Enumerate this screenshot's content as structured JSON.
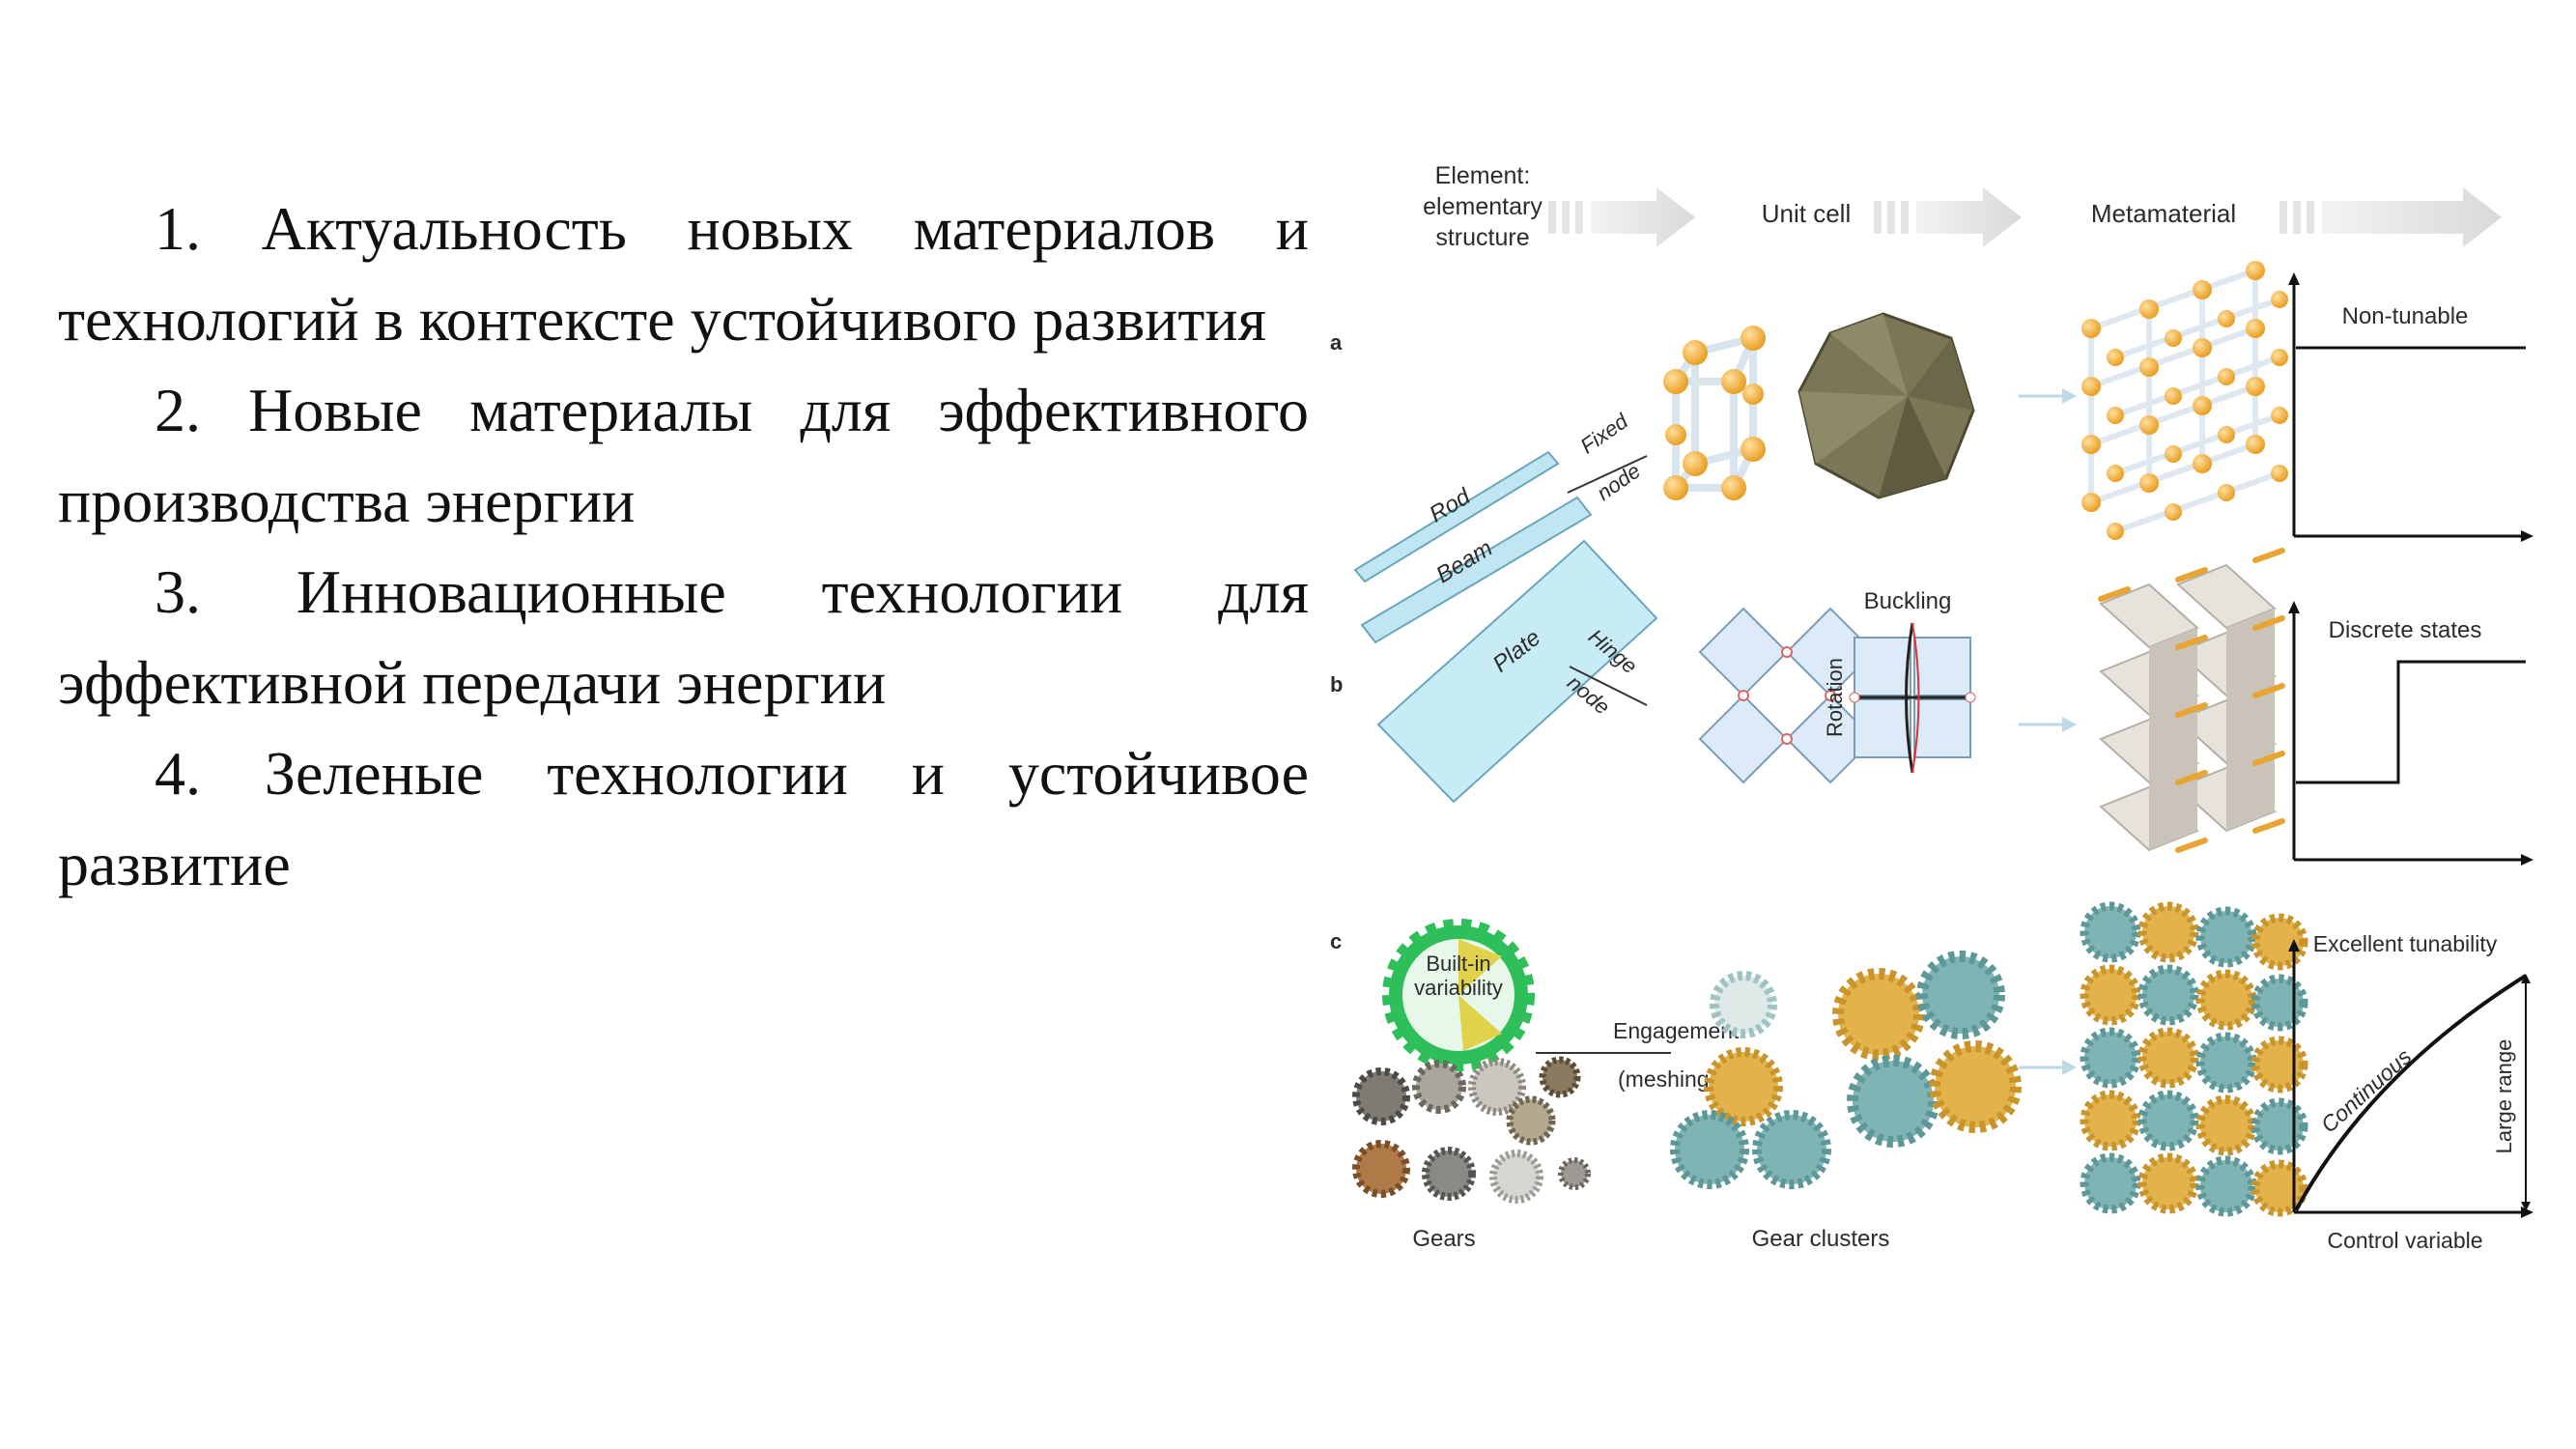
{
  "list_items": [
    {
      "number": "1.",
      "text": "Актуальность новых материалов и технологий в контексте устойчивого развития"
    },
    {
      "number": "2.",
      "text": "Новые материалы для эффективного производства энергии"
    },
    {
      "number": "3.",
      "text": "Инновационные технологии для эффективной передачи энергии"
    },
    {
      "number": "4.",
      "text": "Зеленые технологии и устойчивое развитие"
    }
  ],
  "figure": {
    "header": {
      "element_line1": "Element:",
      "element_line2": "elementary",
      "element_line3": "structure",
      "unit_cell": "Unit cell",
      "metamaterial": "Metamaterial"
    },
    "panel_letters": {
      "a": "a",
      "b": "b",
      "c": "c"
    },
    "elements": {
      "rod": "Rod",
      "beam": "Beam",
      "plate": "Plate"
    },
    "row_a": {
      "fixed": "Fixed",
      "node": "node",
      "graph_label": "Non-tunable"
    },
    "row_b": {
      "hinge": "Hinge",
      "node": "node",
      "buckling": "Buckling",
      "rotation": "Rotation",
      "graph_label": "Discrete states"
    },
    "row_c": {
      "builtin_line1": "Built-in",
      "builtin_line2": "variability",
      "engagement": "Engagement",
      "meshing": "(meshing)",
      "gears": "Gears",
      "gear_clusters": "Gear clusters",
      "graph_label": "Excellent tunability",
      "continuous": "Continuous",
      "large_range": "Large range",
      "control_variable": "Control variable"
    },
    "colors": {
      "orange": "#f0a534",
      "teal": "#7fb4b4",
      "gold": "#e3b24a",
      "green": "#2fbf5a",
      "glass": "#bfe6f2"
    }
  }
}
